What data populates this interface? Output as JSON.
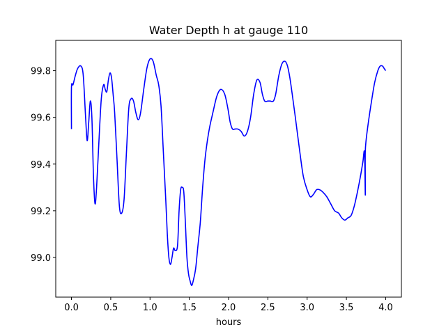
{
  "chart_data": {
    "type": "line",
    "title": "Water Depth h at gauge 110",
    "xlabel": "hours",
    "ylabel": "",
    "xlim": [
      -0.2,
      4.2
    ],
    "ylim": [
      98.83,
      99.93
    ],
    "xticks": [
      0.0,
      0.5,
      1.0,
      1.5,
      2.0,
      2.5,
      3.0,
      3.5,
      4.0
    ],
    "xtick_labels": [
      "0.0",
      "0.5",
      "1.0",
      "1.5",
      "2.0",
      "2.5",
      "3.0",
      "3.5",
      "4.0"
    ],
    "yticks": [
      99.0,
      99.2,
      99.4,
      99.6,
      99.8
    ],
    "ytick_labels": [
      "99.0",
      "99.2",
      "99.4",
      "99.6",
      "99.8"
    ],
    "grid": false,
    "series": [
      {
        "color": "#0000ff",
        "x": [
          0.0,
          0.0,
          0.02,
          0.05,
          0.08,
          0.12,
          0.15,
          0.18,
          0.2,
          0.22,
          0.24,
          0.26,
          0.28,
          0.3,
          0.32,
          0.35,
          0.38,
          0.41,
          0.43,
          0.45,
          0.47,
          0.49,
          0.51,
          0.53,
          0.55,
          0.58,
          0.61,
          0.64,
          0.67,
          0.7,
          0.73,
          0.76,
          0.79,
          0.82,
          0.85,
          0.88,
          0.92,
          0.96,
          1.0,
          1.04,
          1.08,
          1.11,
          1.14,
          1.17,
          1.2,
          1.22,
          1.24,
          1.26,
          1.28,
          1.3,
          1.32,
          1.35,
          1.37,
          1.39,
          1.41,
          1.43,
          1.45,
          1.47,
          1.49,
          1.51,
          1.53,
          1.55,
          1.58,
          1.61,
          1.64,
          1.67,
          1.7,
          1.73,
          1.76,
          1.8,
          1.85,
          1.9,
          1.95,
          1.99,
          2.02,
          2.05,
          2.08,
          2.12,
          2.16,
          2.2,
          2.24,
          2.28,
          2.32,
          2.36,
          2.4,
          2.43,
          2.46,
          2.5,
          2.53,
          2.57,
          2.6,
          2.64,
          2.68,
          2.72,
          2.75,
          2.78,
          2.81,
          2.85,
          2.9,
          2.95,
          3.0,
          3.04,
          3.08,
          3.12,
          3.16,
          3.2,
          3.25,
          3.3,
          3.35,
          3.4,
          3.44,
          3.48,
          3.52,
          3.56,
          3.6,
          3.64,
          3.68,
          3.71,
          3.73,
          3.74,
          3.74,
          3.74,
          3.75,
          3.78,
          3.82,
          3.86,
          3.9,
          3.93,
          3.96,
          3.98,
          4.0
        ],
        "y": [
          99.55,
          99.73,
          99.74,
          99.78,
          99.81,
          99.82,
          99.78,
          99.6,
          99.5,
          99.58,
          99.67,
          99.6,
          99.35,
          99.23,
          99.3,
          99.5,
          99.68,
          99.74,
          99.72,
          99.71,
          99.76,
          99.79,
          99.77,
          99.7,
          99.62,
          99.42,
          99.22,
          99.19,
          99.25,
          99.45,
          99.64,
          99.68,
          99.67,
          99.62,
          99.59,
          99.62,
          99.72,
          99.81,
          99.85,
          99.84,
          99.78,
          99.74,
          99.65,
          99.45,
          99.25,
          99.1,
          99.0,
          98.97,
          99.0,
          99.04,
          99.03,
          99.05,
          99.2,
          99.29,
          99.3,
          99.28,
          99.15,
          99.0,
          98.93,
          98.9,
          98.88,
          98.9,
          98.95,
          99.05,
          99.15,
          99.3,
          99.42,
          99.5,
          99.56,
          99.62,
          99.69,
          99.72,
          99.7,
          99.64,
          99.58,
          99.55,
          99.55,
          99.55,
          99.54,
          99.52,
          99.54,
          99.6,
          99.7,
          99.76,
          99.75,
          99.7,
          99.67,
          99.67,
          99.67,
          99.67,
          99.7,
          99.78,
          99.83,
          99.84,
          99.82,
          99.77,
          99.7,
          99.6,
          99.47,
          99.35,
          99.29,
          99.26,
          99.27,
          99.29,
          99.29,
          99.28,
          99.26,
          99.23,
          99.2,
          99.19,
          99.17,
          99.16,
          99.17,
          99.18,
          99.22,
          99.28,
          99.35,
          99.41,
          99.45,
          99.27,
          99.35,
          99.45,
          99.5,
          99.58,
          99.67,
          99.75,
          99.8,
          99.82,
          99.82,
          99.81,
          99.8
        ]
      }
    ]
  }
}
